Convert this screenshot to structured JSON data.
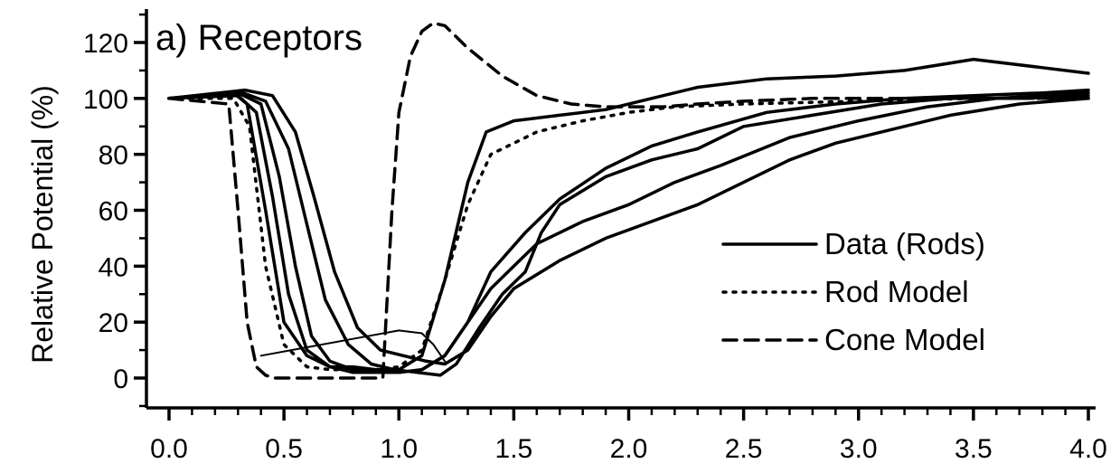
{
  "chart_data": {
    "type": "line",
    "title": "a) Receptors",
    "ylabel": "Relative Potential (%)",
    "xlabel": "",
    "xlim": [
      -0.1,
      4.05
    ],
    "ylim": [
      -10,
      130
    ],
    "x_ticks": [
      0.0,
      0.5,
      1.0,
      1.5,
      2.0,
      2.5,
      3.0,
      3.5,
      4.0
    ],
    "x_tick_labels": [
      "0.0",
      "0.5",
      "1.0",
      "1.5",
      "2.0",
      "2.5",
      "3.0",
      "3.5",
      "4.0"
    ],
    "y_ticks": [
      0,
      20,
      40,
      60,
      80,
      100,
      120
    ],
    "y_tick_labels": [
      "0",
      "20",
      "40",
      "60",
      "80",
      "100",
      "120"
    ],
    "grid": false,
    "legend_position": "center-right",
    "legend": [
      {
        "label": "Data (Rods)",
        "style": "solid"
      },
      {
        "label": "Rod Model",
        "style": "dotted"
      },
      {
        "label": "Cone Model",
        "style": "dashed"
      }
    ],
    "series": [
      {
        "style": "solid",
        "x": [
          0.0,
          0.28,
          0.34,
          0.42,
          0.5,
          0.6,
          0.7,
          0.8,
          0.9,
          1.0,
          1.1,
          1.2,
          1.3,
          1.38,
          1.5,
          1.7,
          1.9,
          2.1,
          2.3,
          2.6,
          2.9,
          3.2,
          3.5,
          3.8,
          4.0
        ],
        "y": [
          100,
          102,
          98,
          60,
          20,
          8,
          4,
          4,
          3,
          3,
          8,
          35,
          70,
          88,
          92,
          94,
          96,
          100,
          104,
          107,
          108,
          110,
          114,
          111,
          109
        ]
      },
      {
        "style": "solid",
        "x": [
          0.0,
          0.3,
          0.38,
          0.45,
          0.52,
          0.6,
          0.7,
          0.8,
          0.9,
          1.0,
          1.1,
          1.2,
          1.3,
          1.4,
          1.55,
          1.7,
          1.9,
          2.1,
          2.3,
          2.6,
          2.9,
          3.2,
          3.5,
          3.8,
          4.0
        ],
        "y": [
          100,
          101,
          95,
          65,
          30,
          10,
          4,
          2,
          2,
          2,
          3,
          8,
          20,
          38,
          52,
          64,
          75,
          83,
          88,
          95,
          98,
          100,
          101,
          102,
          103
        ]
      },
      {
        "style": "solid",
        "x": [
          0.0,
          0.3,
          0.4,
          0.48,
          0.55,
          0.62,
          0.7,
          0.8,
          0.9,
          1.0,
          1.1,
          1.2,
          1.3,
          1.4,
          1.5,
          1.6,
          1.8,
          2.0,
          2.2,
          2.4,
          2.7,
          3.0,
          3.3,
          3.6,
          4.0
        ],
        "y": [
          100,
          102,
          98,
          72,
          40,
          15,
          6,
          3,
          2,
          2,
          3,
          8,
          20,
          32,
          40,
          48,
          56,
          62,
          70,
          76,
          86,
          92,
          97,
          100,
          102
        ]
      },
      {
        "style": "solid",
        "x": [
          0.0,
          0.32,
          0.42,
          0.52,
          0.6,
          0.68,
          0.78,
          0.88,
          0.98,
          1.08,
          1.18,
          1.25,
          1.35,
          1.45,
          1.55,
          1.62,
          1.7,
          1.9,
          2.1,
          2.3,
          2.5,
          2.8,
          3.1,
          3.4,
          3.7,
          4.0
        ],
        "y": [
          100,
          102,
          99,
          82,
          55,
          28,
          12,
          5,
          3,
          2,
          1,
          5,
          18,
          30,
          38,
          52,
          62,
          72,
          78,
          82,
          90,
          94,
          98,
          100,
          100,
          101
        ]
      },
      {
        "style": "solid",
        "x": [
          0.0,
          0.33,
          0.45,
          0.55,
          0.63,
          0.72,
          0.82,
          0.92,
          1.02,
          1.12,
          1.2,
          1.3,
          1.4,
          1.5,
          1.7,
          1.9,
          2.1,
          2.3,
          2.5,
          2.7,
          2.9,
          3.1,
          3.4,
          3.7,
          4.0
        ],
        "y": [
          100,
          103,
          101,
          88,
          65,
          38,
          18,
          10,
          8,
          6,
          5,
          10,
          22,
          32,
          42,
          50,
          56,
          62,
          70,
          78,
          84,
          88,
          94,
          98,
          100
        ]
      },
      {
        "style": "dotted",
        "x": [
          0.0,
          0.28,
          0.35,
          0.42,
          0.5,
          0.6,
          0.7,
          0.8,
          0.9,
          1.0,
          1.1,
          1.2,
          1.3,
          1.4,
          1.6,
          1.8,
          2.0,
          2.2,
          2.5,
          3.0,
          3.5,
          4.0
        ],
        "y": [
          100,
          100,
          90,
          40,
          12,
          4,
          3,
          3,
          3,
          4,
          10,
          35,
          62,
          80,
          88,
          92,
          95,
          97,
          98,
          99,
          100,
          100
        ]
      },
      {
        "style": "dashed",
        "x": [
          0.0,
          0.26,
          0.3,
          0.34,
          0.38,
          0.42,
          0.46,
          0.55,
          0.65,
          0.75,
          0.85,
          0.93,
          0.97,
          1.0,
          1.05,
          1.1,
          1.15,
          1.2,
          1.3,
          1.45,
          1.6,
          1.75,
          1.9,
          2.0,
          2.15,
          2.3,
          2.5,
          2.8,
          3.2,
          3.6,
          4.0
        ],
        "y": [
          100,
          98,
          60,
          20,
          4,
          1,
          0,
          0,
          0,
          0,
          0,
          0,
          60,
          95,
          115,
          124,
          127,
          126,
          118,
          108,
          101,
          98,
          97,
          97,
          97,
          98,
          99,
          100,
          100,
          100,
          100
        ]
      },
      {
        "style": "solid-thin",
        "x": [
          0.4,
          0.6,
          0.8,
          1.0,
          1.1,
          1.15,
          1.2
        ],
        "y": [
          8,
          11,
          14,
          17,
          16,
          12,
          6
        ]
      }
    ]
  }
}
